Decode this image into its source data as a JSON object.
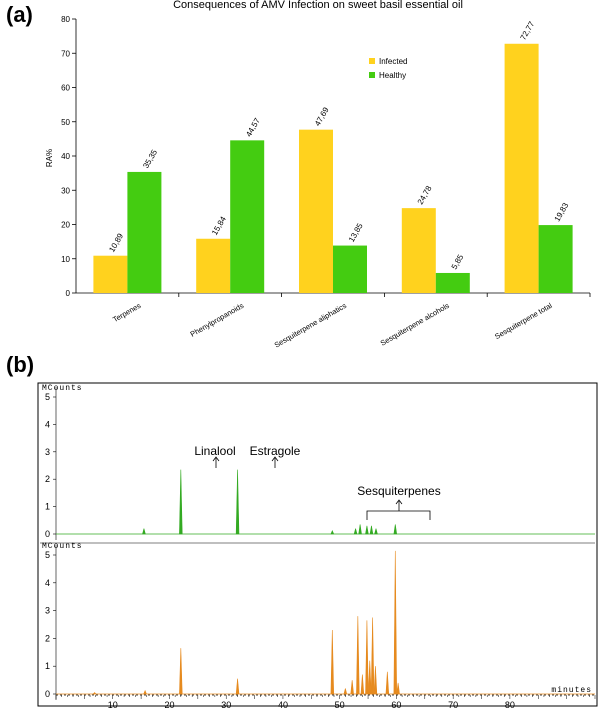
{
  "panel_a": {
    "label": "(a)"
  },
  "panel_b": {
    "label": "(b)"
  },
  "colors": {
    "infected": "#FFD21E",
    "healthy": "#44CC11",
    "chrom_green": "#33AA22",
    "chrom_orange": "#E68A1E"
  },
  "chart_data": [
    {
      "type": "bar",
      "title": "Consequences of AMV Infection on sweet basil essential oil",
      "ylabel": "RA%",
      "xlabel": "",
      "ylim": [
        0,
        80
      ],
      "yticks": [
        0,
        10,
        20,
        30,
        40,
        50,
        60,
        70,
        80
      ],
      "categories": [
        "Terpenes",
        "Phenylpropanoids",
        "Sesquiterpene aliphatics",
        "Sesquiterpene alcohols",
        "Sesquiterpene total"
      ],
      "series": [
        {
          "name": "Infected",
          "values": [
            10.89,
            15.84,
            47.69,
            24.78,
            72.77
          ],
          "labels": [
            "10,89",
            "15,84",
            "47,69",
            "24,78",
            "72,77"
          ]
        },
        {
          "name": "Healthy",
          "values": [
            35.35,
            44.57,
            13.85,
            5.85,
            19.83
          ],
          "labels": [
            "35,35",
            "44,57",
            "13,85",
            "5,85",
            "19,83"
          ]
        }
      ],
      "legend_position": "upper-right"
    },
    {
      "type": "line",
      "ylabel": "MCounts",
      "xlabel": "minutes",
      "xlim": [
        0,
        95
      ],
      "ylim": [
        0,
        5
      ],
      "xticks": [
        10,
        20,
        30,
        40,
        50,
        60,
        70,
        80
      ],
      "yticks": [
        0,
        1,
        2,
        3,
        4,
        5
      ],
      "peaks": [
        [
          15.5,
          0.2
        ],
        [
          22.0,
          2.35
        ],
        [
          32.0,
          2.35
        ],
        [
          48.7,
          0.12
        ],
        [
          52.8,
          0.2
        ],
        [
          53.6,
          0.35
        ],
        [
          54.8,
          0.3
        ],
        [
          55.6,
          0.3
        ],
        [
          56.4,
          0.2
        ],
        [
          59.8,
          0.35
        ]
      ],
      "annotations": [
        "Linalool",
        "Estragole",
        "Sesquiterpenes"
      ]
    },
    {
      "type": "line",
      "ylabel": "MCounts",
      "xlabel": "minutes",
      "xlim": [
        0,
        95
      ],
      "ylim": [
        0,
        5
      ],
      "xticks": [
        10,
        20,
        30,
        40,
        50,
        60,
        70,
        80
      ],
      "yticks": [
        0,
        1,
        2,
        3,
        4,
        5
      ],
      "peaks": [
        [
          6.8,
          0.05
        ],
        [
          15.7,
          0.12
        ],
        [
          22.0,
          1.65
        ],
        [
          32.0,
          0.55
        ],
        [
          48.7,
          2.3
        ],
        [
          51.0,
          0.2
        ],
        [
          52.2,
          0.5
        ],
        [
          53.2,
          2.8
        ],
        [
          54.0,
          0.7
        ],
        [
          54.8,
          2.65
        ],
        [
          55.3,
          1.2
        ],
        [
          55.8,
          2.75
        ],
        [
          56.3,
          1.0
        ],
        [
          58.4,
          0.8
        ],
        [
          59.8,
          5.15
        ],
        [
          60.3,
          0.4
        ]
      ]
    }
  ]
}
